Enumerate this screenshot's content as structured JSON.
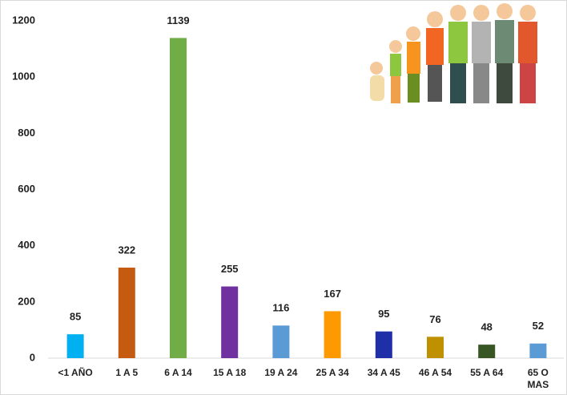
{
  "chart_data": {
    "type": "bar",
    "categories": [
      "<1 AÑO",
      "1 A 5",
      "6 A 14",
      "15 A 18",
      "19 A 24",
      "25 A 34",
      "34 A 45",
      "46 A 54",
      "55 A 64",
      "65 O MAS"
    ],
    "values": [
      85,
      322,
      1139,
      255,
      116,
      167,
      95,
      76,
      48,
      52
    ],
    "colors": [
      "#00b0f0",
      "#c55a11",
      "#70ad47",
      "#7030a0",
      "#5b9bd5",
      "#ff9900",
      "#1f2fa8",
      "#bf9000",
      "#375623",
      "#5b9bd5"
    ],
    "ylim": [
      0,
      1200
    ],
    "yticks": [
      0,
      200,
      400,
      600,
      800,
      1000,
      1200
    ],
    "grid": false
  }
}
